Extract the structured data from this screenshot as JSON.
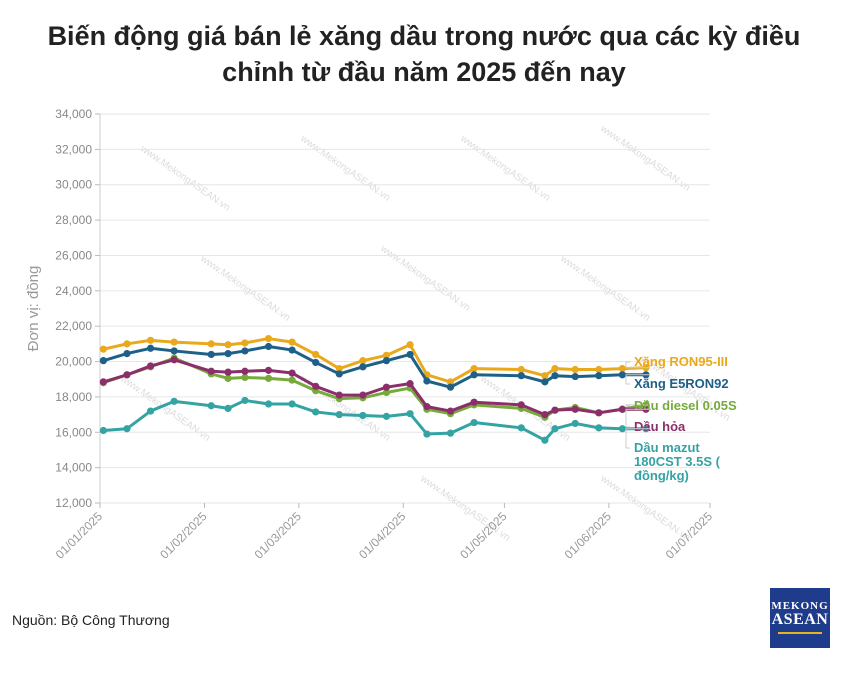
{
  "title_line1": "Biến động giá bán lẻ xăng dầu trong nước qua các kỳ điều",
  "title_line2": "chỉnh từ đầu năm 2025 đến nay",
  "source": "Nguồn: Bộ Công Thương",
  "logo": {
    "line1": "MEKONG",
    "line2": "ASEAN"
  },
  "watermark": "www.MekongASEAN.vn",
  "chart_data": {
    "type": "line",
    "title": "Biến động giá bán lẻ xăng dầu trong nước qua các kỳ điều chỉnh từ đầu năm 2025 đến nay",
    "ylabel": "Đơn vị: đồng",
    "xlabel": "",
    "ylim": [
      12000,
      34000
    ],
    "xlim": [
      "2025-01-01",
      "2025-07-01"
    ],
    "y_ticks": [
      "12,000",
      "14,000",
      "16,000",
      "18,000",
      "20,000",
      "22,000",
      "24,000",
      "26,000",
      "28,000",
      "30,000",
      "32,000",
      "34,000"
    ],
    "x_ticks": [
      "01/01/2025",
      "01/02/2025",
      "01/03/2025",
      "01/04/2025",
      "01/05/2025",
      "01/06/2025",
      "01/07/2025"
    ],
    "grid": "horizontal",
    "legend": "right, end-of-line labels",
    "x": [
      "2025-01-02",
      "2025-01-09",
      "2025-01-16",
      "2025-01-23",
      "2025-02-03",
      "2025-02-08",
      "2025-02-13",
      "2025-02-20",
      "2025-02-27",
      "2025-03-06",
      "2025-03-13",
      "2025-03-20",
      "2025-03-27",
      "2025-04-03",
      "2025-04-08",
      "2025-04-15",
      "2025-04-22",
      "2025-05-06",
      "2025-05-13",
      "2025-05-16",
      "2025-05-22",
      "2025-05-29",
      "2025-06-05",
      "2025-06-12"
    ],
    "series": [
      {
        "name": "Xăng RON95-III",
        "color": "#e9a91c",
        "values": [
          20700,
          21000,
          21200,
          21100,
          21000,
          20950,
          21050,
          21300,
          21100,
          20400,
          19600,
          20050,
          20350,
          20950,
          19250,
          18850,
          19600,
          19550,
          19200,
          19600,
          19550,
          19550,
          19600,
          19650
        ]
      },
      {
        "name": "Xăng E5RON92",
        "color": "#1e6088",
        "values": [
          20050,
          20450,
          20750,
          20600,
          20400,
          20450,
          20600,
          20850,
          20650,
          19950,
          19300,
          19700,
          20050,
          20400,
          18900,
          18550,
          19250,
          19200,
          18850,
          19200,
          19150,
          19200,
          19250,
          19250
        ]
      },
      {
        "name": "Dầu diesel 0.05S",
        "color": "#76aa3a",
        "values": [
          18800,
          19250,
          19700,
          20200,
          19300,
          19050,
          19100,
          19050,
          18950,
          18350,
          17900,
          17950,
          18250,
          18500,
          17300,
          17050,
          17550,
          17350,
          16850,
          17250,
          17400,
          17100,
          17300,
          17550
        ]
      },
      {
        "name": "Dầu hỏa",
        "color": "#8b2e6b",
        "values": [
          18850,
          19250,
          19750,
          20100,
          19450,
          19400,
          19450,
          19500,
          19350,
          18600,
          18100,
          18100,
          18550,
          18750,
          17450,
          17200,
          17700,
          17550,
          17000,
          17250,
          17300,
          17100,
          17300,
          17300
        ]
      },
      {
        "name": "Dầu mazut 180CST 3.5S ( đồng/kg)",
        "color": "#34a3a3",
        "values": [
          16100,
          16200,
          17200,
          17750,
          17500,
          17350,
          17800,
          17600,
          17600,
          17150,
          17000,
          16950,
          16900,
          17050,
          15900,
          15950,
          16550,
          16250,
          15550,
          16200,
          16500,
          16250,
          16200,
          16200
        ]
      }
    ]
  }
}
